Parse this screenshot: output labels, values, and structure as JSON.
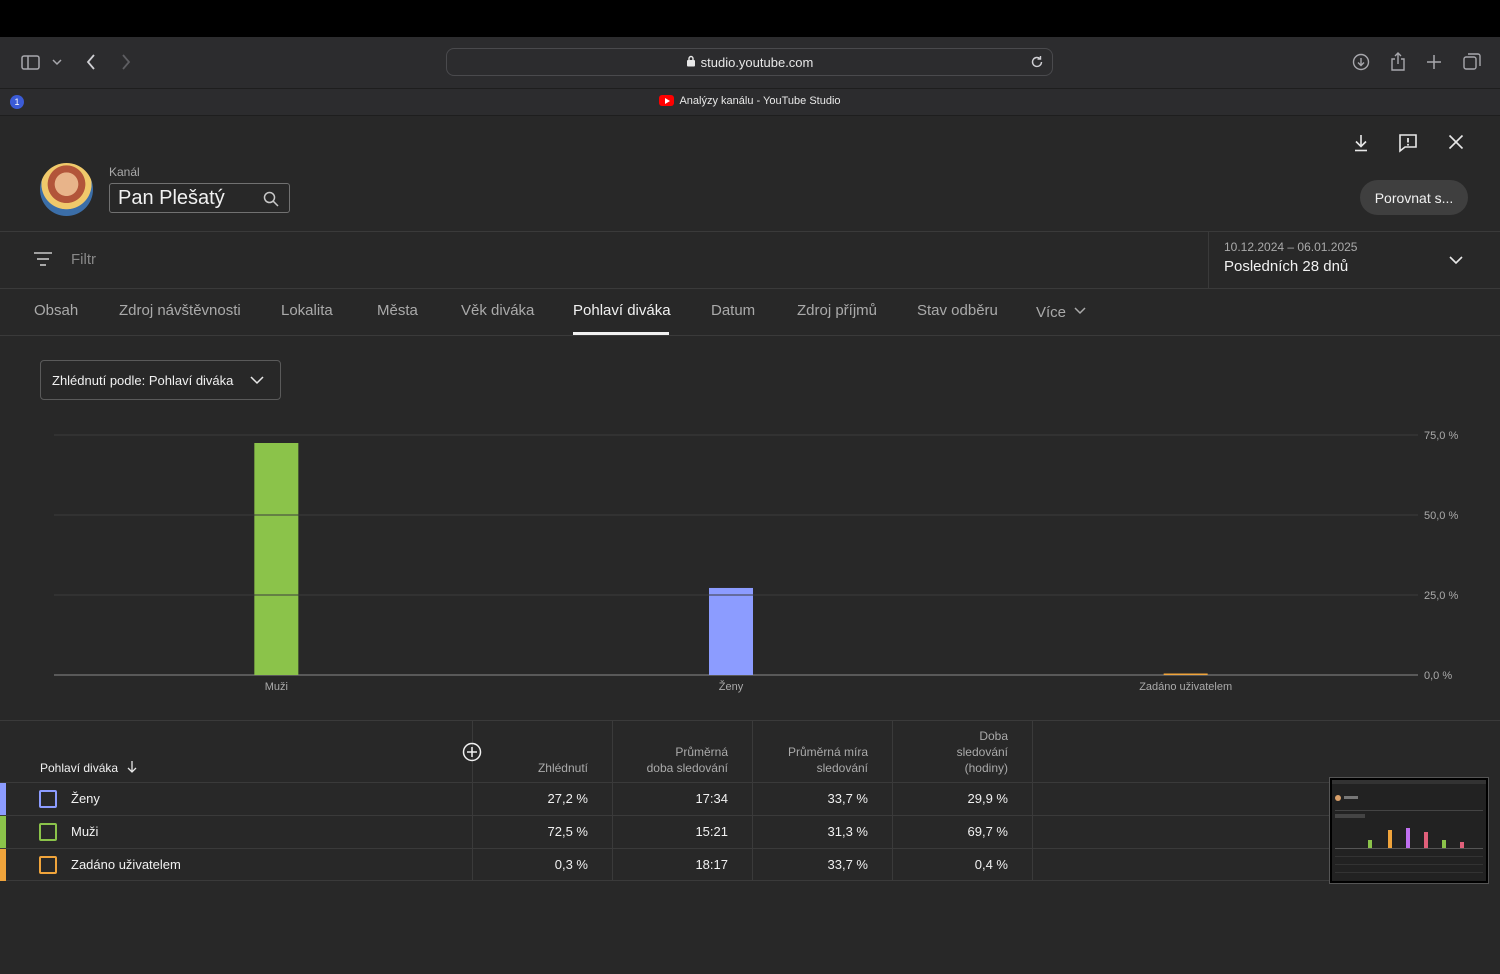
{
  "browser": {
    "url": "studio.youtube.com",
    "tab_title": "Analýzy kanálu - YouTube Studio",
    "password_manager_badge": "1",
    "icons": [
      "sidebar-icon",
      "chevron-down-icon",
      "back-icon",
      "forward-icon",
      "lock-icon",
      "reload-icon",
      "download-icon",
      "share-icon",
      "new-tab-icon",
      "tab-overview-icon"
    ]
  },
  "header": {
    "channel_label": "Kanál",
    "channel_name": "Pan Plešatý",
    "compare_button": "Porovnat s...",
    "icons": [
      "download-icon",
      "feedback-icon",
      "close-icon"
    ]
  },
  "filter": {
    "placeholder": "Filtr",
    "date_range": "10.12.2024 – 06.01.2025",
    "period_label": "Posledních 28 dnů"
  },
  "tabs": [
    {
      "label": "Obsah"
    },
    {
      "label": "Zdroj návštěvnosti"
    },
    {
      "label": "Lokalita"
    },
    {
      "label": "Města"
    },
    {
      "label": "Věk diváka"
    },
    {
      "label": "Pohlaví diváka",
      "active": true
    },
    {
      "label": "Datum"
    },
    {
      "label": "Zdroj příjmů"
    },
    {
      "label": "Stav odběru"
    },
    {
      "label": "Více"
    }
  ],
  "metric_dropdown": "Zhlédnutí podle: Pohlaví diváka",
  "chart_data": {
    "type": "bar",
    "categories": [
      "Muži",
      "Ženy",
      "Zadáno uživatelem"
    ],
    "values": [
      72.5,
      27.2,
      0.3
    ],
    "colors": [
      "#8bc34a",
      "#8c9cff",
      "#f0a43b"
    ],
    "ylim": [
      0,
      75
    ],
    "yticks": [
      "0,0 %",
      "25,0 %",
      "50,0 %",
      "75,0 %"
    ],
    "ytick_values": [
      0,
      25,
      50,
      75
    ],
    "grid": true,
    "title": "",
    "xlabel": "",
    "ylabel": ""
  },
  "table": {
    "columns": {
      "dimension": "Pohlaví diváka",
      "views": "Zhlédnutí",
      "avg_duration": [
        "Průměrná",
        "doba sledování"
      ],
      "avg_rate": [
        "Průměrná míra",
        "sledování"
      ],
      "watch_time": [
        "Doba",
        "sledování",
        "(hodiny)"
      ]
    },
    "rows": [
      {
        "label": "Ženy",
        "color": "#8c9cff",
        "views": "27,2 %",
        "avg_duration": "17:34",
        "avg_rate": "33,7 %",
        "watch_time": "29,9 %"
      },
      {
        "label": "Muži",
        "color": "#8bc34a",
        "views": "72,5 %",
        "avg_duration": "15:21",
        "avg_rate": "31,3 %",
        "watch_time": "69,7 %"
      },
      {
        "label": "Zadáno uživatelem",
        "color": "#f0a43b",
        "views": "0,3 %",
        "avg_duration": "18:17",
        "avg_rate": "33,7 %",
        "watch_time": "0,4 %"
      }
    ]
  }
}
